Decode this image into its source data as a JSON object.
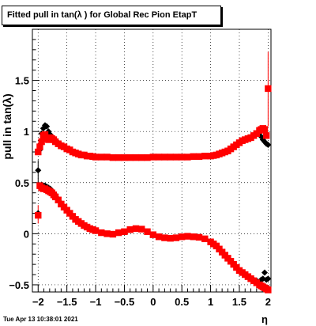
{
  "chart_data": {
    "type": "scatter",
    "title": "Fitted pull in tan(λ ) for Global Rec Pion EtapT",
    "xlabel": "η",
    "ylabel": "pull in tan(λ)",
    "xlim": [
      -2.1,
      2.05
    ],
    "ylim": [
      -0.57,
      2.0
    ],
    "grid": true,
    "x_tick_labels": [
      "−2",
      "−1.5",
      "−1",
      "−0.5",
      "0",
      "0.5",
      "1",
      "1.5",
      "2"
    ],
    "x_ticks": [
      -2,
      -1.5,
      -1,
      -0.5,
      0,
      0.5,
      1,
      1.5,
      2
    ],
    "y_tick_labels": [
      "−0.5",
      "0",
      "0.5",
      "1",
      "1.5"
    ],
    "y_ticks": [
      -0.5,
      0,
      0.5,
      1,
      1.5
    ],
    "series": [
      {
        "color": "#000000",
        "marker": "diamond",
        "x": [
          -2.0,
          -1.97,
          -1.94,
          -1.91,
          -1.88,
          -1.85,
          -1.82,
          -1.79,
          -1.76,
          -1.73,
          -1.7,
          -1.65,
          -1.6,
          -1.55,
          -1.5,
          -1.45,
          -1.4,
          -1.35,
          -1.3,
          -1.25,
          -1.2,
          -1.15,
          -1.1,
          -1.05,
          -1.0,
          -0.9,
          -0.8,
          -0.7,
          -0.6,
          -0.5,
          -0.4,
          -0.3,
          -0.2,
          -0.1,
          0.0,
          0.1,
          0.2,
          0.3,
          0.4,
          0.5,
          0.6,
          0.7,
          0.8,
          0.9,
          1.0,
          1.05,
          1.1,
          1.15,
          1.2,
          1.25,
          1.3,
          1.35,
          1.4,
          1.45,
          1.5,
          1.55,
          1.6,
          1.65,
          1.7,
          1.75,
          1.8,
          1.85,
          1.88,
          1.91,
          1.94,
          1.97,
          2.0
        ],
        "y": [
          0.62,
          0.82,
          0.98,
          1.03,
          1.06,
          1.05,
          1.0,
          0.97,
          0.95,
          0.93,
          0.91,
          0.89,
          0.87,
          0.85,
          0.83,
          0.82,
          0.8,
          0.79,
          0.78,
          0.77,
          0.77,
          0.76,
          0.76,
          0.755,
          0.75,
          0.75,
          0.75,
          0.745,
          0.745,
          0.745,
          0.745,
          0.745,
          0.745,
          0.745,
          0.75,
          0.75,
          0.75,
          0.75,
          0.75,
          0.75,
          0.75,
          0.755,
          0.755,
          0.76,
          0.76,
          0.765,
          0.77,
          0.78,
          0.79,
          0.8,
          0.81,
          0.83,
          0.85,
          0.87,
          0.89,
          0.91,
          0.92,
          0.93,
          0.94,
          0.96,
          0.98,
          0.99,
          0.95,
          0.92,
          0.9,
          0.88,
          0.87
        ]
      },
      {
        "color": "#ff0000",
        "marker": "square",
        "x": [
          -2.0,
          -1.97,
          -1.94,
          -1.91,
          -1.88,
          -1.85,
          -1.82,
          -1.79,
          -1.76,
          -1.73,
          -1.7,
          -1.65,
          -1.6,
          -1.55,
          -1.5,
          -1.45,
          -1.4,
          -1.35,
          -1.3,
          -1.25,
          -1.2,
          -1.15,
          -1.1,
          -1.05,
          -1.0,
          -0.9,
          -0.8,
          -0.7,
          -0.6,
          -0.5,
          -0.4,
          -0.3,
          -0.2,
          -0.1,
          0.0,
          0.1,
          0.2,
          0.3,
          0.4,
          0.5,
          0.6,
          0.7,
          0.8,
          0.9,
          1.0,
          1.05,
          1.1,
          1.15,
          1.2,
          1.25,
          1.3,
          1.35,
          1.4,
          1.45,
          1.5,
          1.55,
          1.6,
          1.65,
          1.7,
          1.75,
          1.8,
          1.85,
          1.88,
          1.91,
          1.94,
          1.97,
          2.0
        ],
        "y": [
          0.8,
          0.85,
          0.9,
          0.96,
          0.97,
          0.93,
          0.92,
          0.94,
          0.93,
          0.92,
          0.9,
          0.88,
          0.86,
          0.85,
          0.83,
          0.82,
          0.8,
          0.79,
          0.78,
          0.77,
          0.77,
          0.76,
          0.76,
          0.755,
          0.75,
          0.75,
          0.75,
          0.745,
          0.745,
          0.745,
          0.745,
          0.745,
          0.745,
          0.745,
          0.75,
          0.75,
          0.75,
          0.75,
          0.75,
          0.75,
          0.75,
          0.755,
          0.755,
          0.76,
          0.76,
          0.765,
          0.77,
          0.78,
          0.79,
          0.8,
          0.81,
          0.83,
          0.85,
          0.87,
          0.89,
          0.91,
          0.92,
          0.93,
          0.94,
          0.96,
          0.98,
          1.01,
          1.02,
          1.03,
          1.02,
          0.96,
          1.42
        ]
      },
      {
        "color": "#000000",
        "marker": "diamond",
        "x": [
          -2.0,
          -1.97,
          -1.94,
          -1.91,
          -1.88,
          -1.85,
          -1.82,
          -1.79,
          -1.76,
          -1.73,
          -1.7,
          -1.65,
          -1.6,
          -1.55,
          -1.5,
          -1.45,
          -1.4,
          -1.35,
          -1.3,
          -1.25,
          -1.2,
          -1.15,
          -1.1,
          -1.05,
          -1.0,
          -0.9,
          -0.8,
          -0.7,
          -0.6,
          -0.5,
          -0.4,
          -0.3,
          -0.2,
          -0.1,
          0.0,
          0.1,
          0.2,
          0.3,
          0.4,
          0.5,
          0.6,
          0.7,
          0.8,
          0.9,
          1.0,
          1.05,
          1.1,
          1.15,
          1.2,
          1.25,
          1.3,
          1.35,
          1.4,
          1.45,
          1.5,
          1.55,
          1.6,
          1.65,
          1.7,
          1.75,
          1.8,
          1.85,
          1.88,
          1.91,
          1.94,
          1.97,
          2.0
        ],
        "y": [
          0.2,
          0.45,
          0.48,
          0.47,
          0.47,
          0.46,
          0.45,
          0.44,
          0.42,
          0.4,
          0.38,
          0.34,
          0.3,
          0.26,
          0.23,
          0.2,
          0.17,
          0.14,
          0.12,
          0.1,
          0.08,
          0.065,
          0.05,
          0.04,
          0.03,
          0.01,
          0.0,
          -0.005,
          0.01,
          0.02,
          0.04,
          0.05,
          0.045,
          0.02,
          -0.01,
          -0.03,
          -0.04,
          -0.045,
          -0.04,
          -0.03,
          -0.025,
          -0.03,
          -0.035,
          -0.05,
          -0.08,
          -0.1,
          -0.12,
          -0.15,
          -0.18,
          -0.21,
          -0.24,
          -0.27,
          -0.3,
          -0.33,
          -0.36,
          -0.38,
          -0.4,
          -0.42,
          -0.44,
          -0.45,
          -0.46,
          -0.47,
          -0.45,
          -0.44,
          -0.38,
          -0.45,
          -0.44
        ]
      },
      {
        "color": "#ff0000",
        "marker": "square",
        "x": [
          -2.0,
          -1.97,
          -1.94,
          -1.91,
          -1.88,
          -1.85,
          -1.82,
          -1.79,
          -1.76,
          -1.73,
          -1.7,
          -1.65,
          -1.6,
          -1.55,
          -1.5,
          -1.45,
          -1.4,
          -1.35,
          -1.3,
          -1.25,
          -1.2,
          -1.15,
          -1.1,
          -1.05,
          -1.0,
          -0.9,
          -0.8,
          -0.7,
          -0.6,
          -0.5,
          -0.4,
          -0.3,
          -0.2,
          -0.1,
          0.0,
          0.1,
          0.2,
          0.3,
          0.4,
          0.5,
          0.6,
          0.7,
          0.8,
          0.9,
          1.0,
          1.05,
          1.1,
          1.15,
          1.2,
          1.25,
          1.3,
          1.35,
          1.4,
          1.45,
          1.5,
          1.55,
          1.6,
          1.65,
          1.7,
          1.75,
          1.8,
          1.85,
          1.88,
          1.91,
          1.94,
          1.97,
          2.0
        ],
        "y": [
          0.18,
          0.47,
          0.45,
          0.44,
          0.44,
          0.43,
          0.42,
          0.41,
          0.4,
          0.38,
          0.36,
          0.33,
          0.29,
          0.26,
          0.23,
          0.2,
          0.17,
          0.14,
          0.12,
          0.1,
          0.08,
          0.065,
          0.05,
          0.04,
          0.03,
          0.01,
          0.0,
          -0.005,
          0.01,
          0.02,
          0.04,
          0.05,
          0.045,
          0.02,
          -0.01,
          -0.03,
          -0.04,
          -0.045,
          -0.04,
          -0.03,
          -0.025,
          -0.03,
          -0.035,
          -0.05,
          -0.08,
          -0.1,
          -0.12,
          -0.15,
          -0.18,
          -0.21,
          -0.24,
          -0.27,
          -0.3,
          -0.33,
          -0.36,
          -0.38,
          -0.4,
          -0.42,
          -0.44,
          -0.46,
          -0.48,
          -0.5,
          -0.51,
          -0.52,
          -0.53,
          -0.54,
          -0.55
        ]
      }
    ]
  },
  "timestamp": "Tue Apr 13 10:38:01 2021"
}
